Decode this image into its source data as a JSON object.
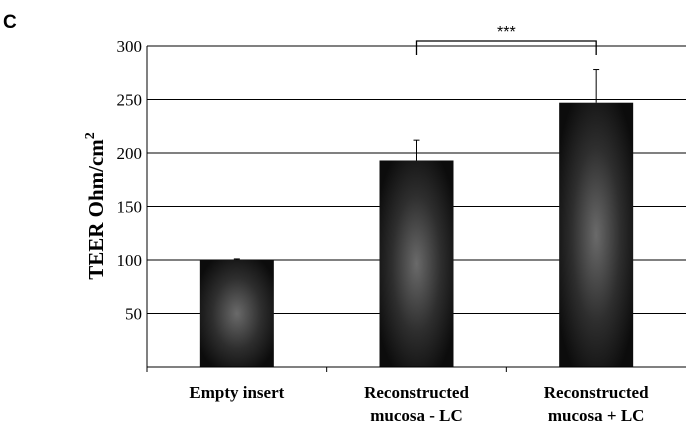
{
  "panel_label": "C",
  "chart_data": {
    "type": "bar",
    "categories": [
      [
        "Empty insert"
      ],
      [
        "Reconstructed",
        "mucosa - LC"
      ],
      [
        "Reconstructed",
        "mucosa + LC"
      ]
    ],
    "values": [
      100,
      193,
      247
    ],
    "errors": [
      1,
      19,
      31
    ],
    "ylabel": "TEER Ohm/cm",
    "ylabel_superscript": "2",
    "ylim": [
      0,
      300
    ],
    "yticks": [
      50,
      100,
      150,
      200,
      250,
      300
    ],
    "grid": true,
    "significance": {
      "from": 1,
      "to": 2,
      "label": "***"
    },
    "bar_color": "#1c1c1c"
  }
}
